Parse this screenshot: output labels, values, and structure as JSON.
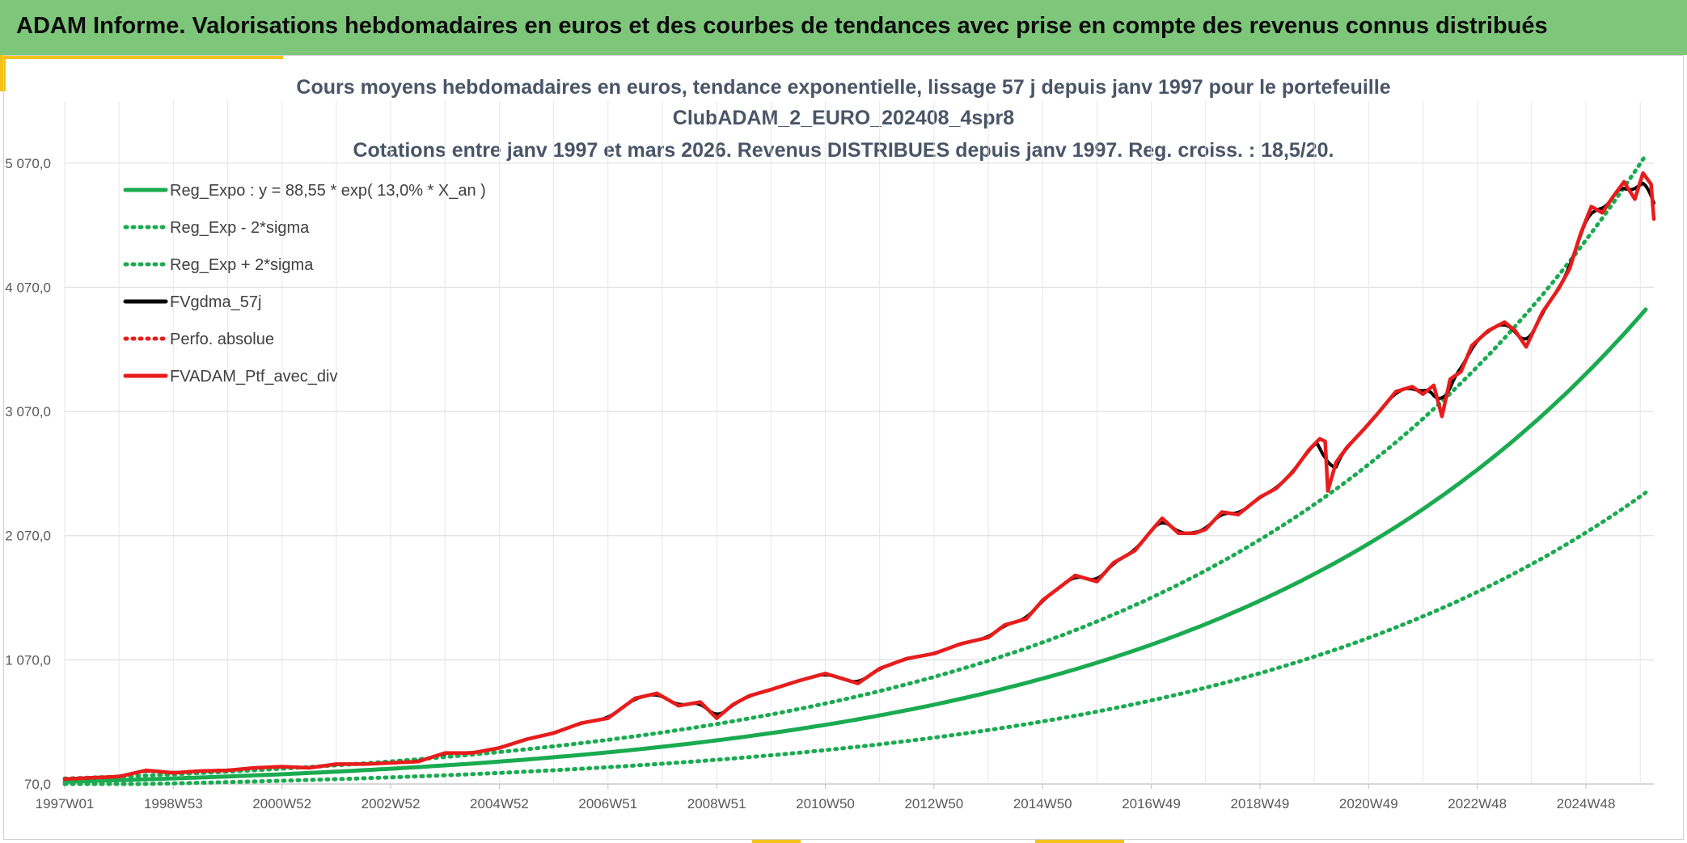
{
  "header": {
    "title": "ADAM Informe. Valorisations hebdomadaires en euros et des courbes de tendances avec prise en compte des revenus connus distribués"
  },
  "chart_data": {
    "type": "line",
    "title_lines": [
      "Cours moyens hebdomadaires en euros, tendance exponentielle, lissage 57 j depuis janv 1997 pour le portefeuille",
      "ClubADAM_2_EURO_202408_4spr8",
      "Cotations entre janv 1997 et mars 2026. Revenus DISTRIBUES depuis janv 1997. Reg. croiss. : 18,5/20."
    ],
    "xlabel": "",
    "ylabel": "",
    "x_range_years": [
      1997.0,
      2026.25
    ],
    "ylim": [
      70,
      5570
    ],
    "y_ticks": [
      70,
      1070,
      2070,
      3070,
      4070,
      5070
    ],
    "y_tick_labels": [
      "70,0",
      "1 070,0",
      "2 070,0",
      "3 070,0",
      "4 070,0",
      "5 070,0"
    ],
    "x_ticks": [
      1997.0,
      1999.0,
      2001.0,
      2003.0,
      2005.0,
      2007.0,
      2009.0,
      2011.0,
      2013.0,
      2015.0,
      2017.0,
      2019.0,
      2021.0,
      2023.0,
      2025.0
    ],
    "x_tick_labels": [
      "1997W01",
      "1998W53",
      "2000W52",
      "2002W52",
      "2004W52",
      "2006W51",
      "2008W51",
      "2010W50",
      "2012W50",
      "2014W50",
      "2016W49",
      "2018W49",
      "2020W49",
      "2022W48",
      "2024W48"
    ],
    "grid": true,
    "legend_position": "top-left",
    "regression": {
      "a": 88.55,
      "rate": 0.13,
      "sigma_factor_low": 0.62,
      "sigma_factor_high": 1.32
    },
    "series": [
      {
        "name": "Reg_Expo : y = 88,55 * exp( 13,0% *  X_an )",
        "color": "#1aab50",
        "style": "solid",
        "kind": "reg"
      },
      {
        "name": "Reg_Exp - 2*sigma",
        "color": "#1aab50",
        "style": "dotted",
        "kind": "reg_low"
      },
      {
        "name": "Reg_Exp + 2*sigma",
        "color": "#1aab50",
        "style": "dotted",
        "kind": "reg_high"
      },
      {
        "name": "FVgdma_57j",
        "color": "#000000",
        "style": "solid",
        "kind": "smooth"
      },
      {
        "name": "Perfo. absolue",
        "color": "#e81c1c",
        "style": "dotted",
        "kind": "none"
      },
      {
        "name": "FVADAM_Ptf_avec_div",
        "color": "#e81c1c",
        "style": "solid",
        "kind": "price",
        "x": [
          1997.0,
          1997.5,
          1998.0,
          1998.5,
          1999.0,
          1999.5,
          2000.0,
          2000.5,
          2001.0,
          2001.5,
          2002.0,
          2002.5,
          2003.0,
          2003.5,
          2004.0,
          2004.5,
          2005.0,
          2005.5,
          2006.0,
          2006.5,
          2007.0,
          2007.5,
          2007.9,
          2008.3,
          2008.7,
          2009.0,
          2009.3,
          2009.6,
          2010.0,
          2010.5,
          2011.0,
          2011.3,
          2011.6,
          2012.0,
          2012.5,
          2013.0,
          2013.5,
          2014.0,
          2014.3,
          2014.7,
          2015.0,
          2015.3,
          2015.6,
          2016.0,
          2016.3,
          2016.7,
          2017.0,
          2017.2,
          2017.5,
          2017.8,
          2018.0,
          2018.3,
          2018.6,
          2019.0,
          2019.3,
          2019.6,
          2019.9,
          2020.1,
          2020.2,
          2020.25,
          2020.4,
          2020.6,
          2020.9,
          2021.2,
          2021.5,
          2021.8,
          2022.0,
          2022.2,
          2022.35,
          2022.5,
          2022.7,
          2022.9,
          2023.2,
          2023.5,
          2023.7,
          2023.9,
          2024.2,
          2024.5,
          2024.7,
          2024.9,
          2025.1,
          2025.3,
          2025.5,
          2025.7,
          2025.9,
          2026.05,
          2026.2,
          2026.25
        ],
        "values": [
          110,
          120,
          130,
          180,
          160,
          175,
          180,
          200,
          210,
          200,
          230,
          230,
          240,
          250,
          320,
          320,
          360,
          430,
          480,
          560,
          600,
          760,
          800,
          700,
          730,
          600,
          710,
          780,
          830,
          900,
          960,
          920,
          880,
          1000,
          1080,
          1120,
          1200,
          1250,
          1350,
          1400,
          1550,
          1650,
          1750,
          1700,
          1850,
          1950,
          2110,
          2210,
          2090,
          2090,
          2120,
          2260,
          2240,
          2380,
          2450,
          2580,
          2760,
          2850,
          2830,
          2430,
          2660,
          2780,
          2920,
          3070,
          3230,
          3270,
          3210,
          3280,
          3030,
          3330,
          3390,
          3600,
          3720,
          3790,
          3720,
          3590,
          3870,
          4060,
          4220,
          4500,
          4720,
          4670,
          4800,
          4920,
          4780,
          4990,
          4900,
          4620
        ]
      }
    ]
  }
}
